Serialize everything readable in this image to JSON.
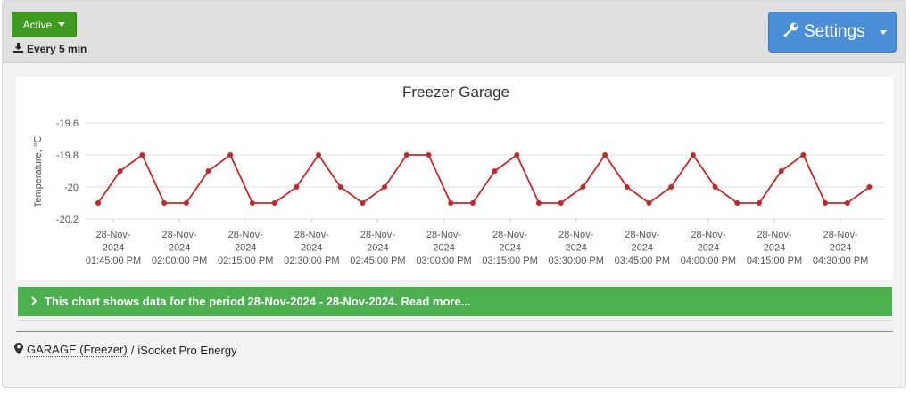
{
  "toolbar": {
    "status_label": "Active",
    "interval_label": "Every 5 min",
    "settings_label": "Settings"
  },
  "icons": {
    "download": "download-icon",
    "wrench": "wrench-icon",
    "map_marker": "map-marker-icon",
    "chevron": "chevron-right-icon"
  },
  "colors": {
    "status_green": "#3f9a1f",
    "settings_blue": "#4a8fd6",
    "banner_green": "#4caf50",
    "series_red": "#c0292b"
  },
  "chart_data": {
    "type": "line",
    "title": "Freezer Garage",
    "xlabel": "",
    "ylabel": "Temperature, ℃",
    "ylim": [
      -20.2,
      -19.6
    ],
    "yticks": [
      "-19.6",
      "-19.8",
      "-20",
      "-20.2"
    ],
    "ytick_values": [
      -19.6,
      -19.8,
      -20.0,
      -20.2
    ],
    "xticks": [
      [
        "28-Nov-",
        "2024",
        "01:45:00 PM"
      ],
      [
        "28-Nov-",
        "2024",
        "02:00:00 PM"
      ],
      [
        "28-Nov-",
        "2024",
        "02:15:00 PM"
      ],
      [
        "28-Nov-",
        "2024",
        "02:30:00 PM"
      ],
      [
        "28-Nov-",
        "2024",
        "02:45:00 PM"
      ],
      [
        "28-Nov-",
        "2024",
        "03:00:00 PM"
      ],
      [
        "28-Nov-",
        "2024",
        "03:15:00 PM"
      ],
      [
        "28-Nov-",
        "2024",
        "03:30:00 PM"
      ],
      [
        "28-Nov-",
        "2024",
        "03:45:00 PM"
      ],
      [
        "28-Nov-",
        "2024",
        "04:00:00 PM"
      ],
      [
        "28-Nov-",
        "2024",
        "04:15:00 PM"
      ],
      [
        "28-Nov-",
        "2024",
        "04:30:00 PM"
      ]
    ],
    "grid": true,
    "legend": false,
    "series": [
      {
        "values": [
          -20.1,
          -19.9,
          -19.8,
          -20.1,
          -20.1,
          -19.9,
          -19.8,
          -20.1,
          -20.1,
          -20.0,
          -19.8,
          -20.0,
          -20.1,
          -20.0,
          -19.8,
          -19.8,
          -20.1,
          -20.1,
          -19.9,
          -19.8,
          -20.1,
          -20.1,
          -20.0,
          -19.8,
          -20.0,
          -20.1,
          -20.0,
          -19.8,
          -20.0,
          -20.1,
          -20.1,
          -19.9,
          -19.8,
          -20.1,
          -20.1,
          -20.0
        ]
      }
    ]
  },
  "banner": {
    "text": "This chart shows data for the period 28-Nov-2024 - 28-Nov-2024. Read more..."
  },
  "footer": {
    "device_link": "GARAGE (Freezer)",
    "separator": " / ",
    "device_type": "iSocket Pro Energy"
  }
}
